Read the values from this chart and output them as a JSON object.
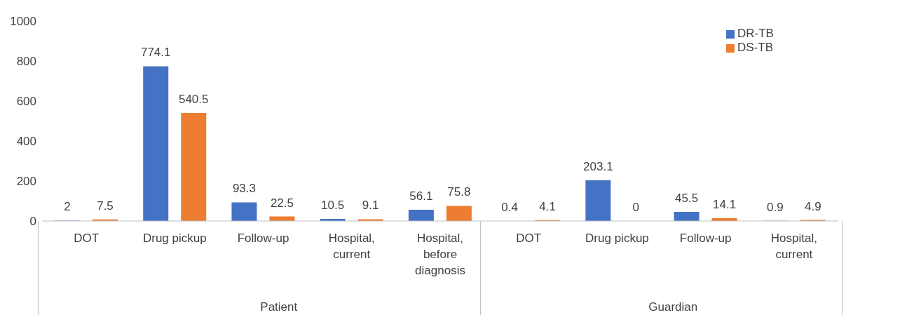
{
  "chart_data": {
    "type": "bar",
    "categories": [
      "DOT",
      "Drug pickup",
      "Follow-up",
      "Hospital, current",
      "Hospital, before diagnosis",
      "DOT",
      "Drug pickup",
      "Follow-up",
      "Hospital, current"
    ],
    "series": [
      {
        "name": "DR-TB",
        "color": "#4472c4",
        "values": [
          2,
          774.1,
          93.3,
          10.5,
          56.1,
          0.4,
          203.1,
          45.5,
          0.9
        ]
      },
      {
        "name": "DS-TB",
        "color": "#ed7d31",
        "values": [
          7.5,
          540.5,
          22.5,
          9.1,
          75.8,
          4.1,
          0,
          14.1,
          4.9
        ]
      }
    ],
    "annotations": [
      "Patient",
      "Guardian"
    ],
    "ylim": [
      0,
      1000
    ],
    "yticks": [
      0,
      200,
      400,
      600,
      800,
      1000
    ],
    "legend": "top right",
    "data_labels": true
  }
}
